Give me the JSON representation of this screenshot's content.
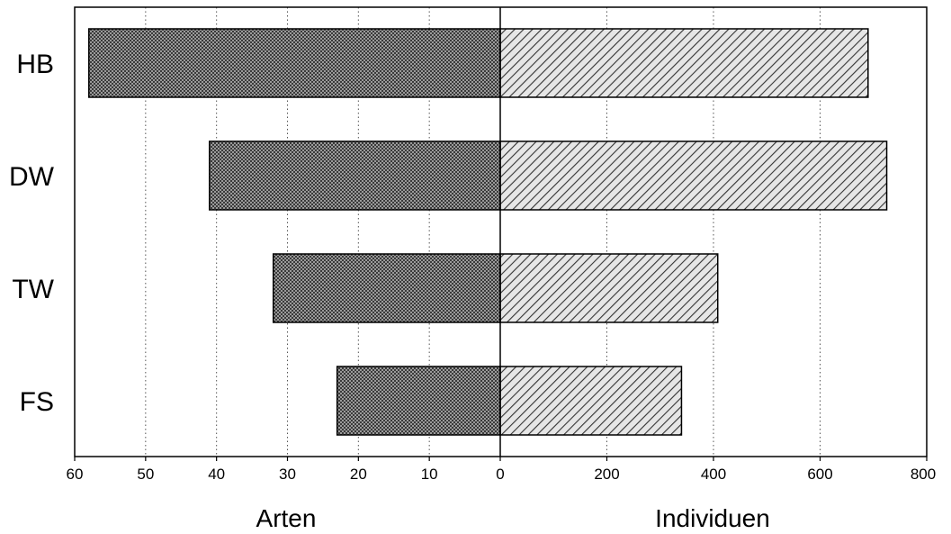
{
  "chart_data": {
    "type": "bar",
    "orientation": "horizontal",
    "layout": "butterfly",
    "categories": [
      "HB",
      "DW",
      "TW",
      "FS"
    ],
    "grid": true,
    "grid_style": "dotted vertical",
    "series": [
      {
        "name": "Arten",
        "side": "left",
        "values": [
          58,
          41,
          32,
          23
        ],
        "xlim": [
          0,
          60
        ],
        "ticks": [
          60,
          50,
          40,
          30,
          20,
          10,
          0
        ],
        "fill": "crosshatch",
        "color": "#555555"
      },
      {
        "name": "Individuen",
        "side": "right",
        "values": [
          690,
          725,
          408,
          340
        ],
        "xlim": [
          0,
          800
        ],
        "ticks": [
          0,
          200,
          400,
          600,
          800
        ],
        "fill": "diagonal-stripes",
        "color": "#888888"
      }
    ],
    "xlabel_left": "Arten",
    "xlabel_right": "Individuen"
  }
}
